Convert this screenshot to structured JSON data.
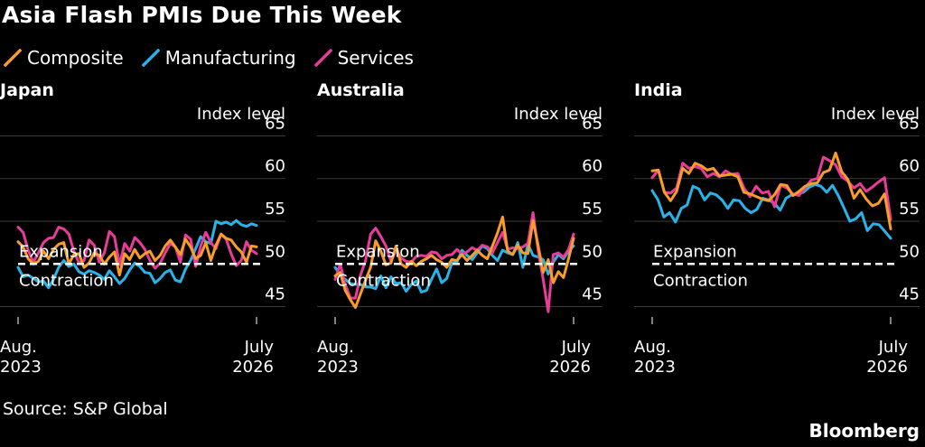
{
  "title": "Asia Flash PMIs Due This Week",
  "legend": [
    {
      "label": "Composite",
      "color": "#F99D2A",
      "icon": "check-mark-icon"
    },
    {
      "label": "Manufacturing",
      "color": "#28B4E9",
      "icon": "check-mark-icon"
    },
    {
      "label": "Services",
      "color": "#E93C9A",
      "icon": "check-mark-icon"
    }
  ],
  "source": "Source: S&P Global",
  "brand": "Bloomberg",
  "chart_data": [
    {
      "type": "line",
      "title": "Japan",
      "ylabel": "Index level",
      "ylim": [
        44,
        66
      ],
      "yticks": [
        45,
        50,
        55,
        60,
        65
      ],
      "x_start_label": [
        "Aug.",
        "2023"
      ],
      "x_end_label": [
        "July",
        "2026"
      ],
      "annotations": {
        "reference_line": 50,
        "above": "Expansion",
        "below": "Contraction"
      },
      "grid": true,
      "series": [
        {
          "name": "Composite",
          "color": "#F99D2A",
          "values": [
            52.6,
            52.0,
            50.6,
            50.0,
            50.3,
            51.5,
            50.6,
            51.7,
            52.3,
            52.5,
            50.0,
            51.1,
            51.2,
            49.6,
            50.1,
            51.3,
            51.0,
            50.0,
            50.8,
            51.4,
            48.7,
            51.2,
            50.5,
            51.7,
            50.7,
            51.2,
            51.5,
            50.4,
            51.0,
            52.1,
            52.8,
            52.0,
            51.1,
            52.9,
            52.0,
            50.6,
            51.0,
            52.5,
            50.4,
            52.2,
            53.5,
            53.0,
            52.8,
            52.0,
            51.4,
            50.2,
            52.1,
            52.0
          ]
        },
        {
          "name": "Manufacturing",
          "color": "#28B4E9",
          "values": [
            49.6,
            48.5,
            48.7,
            48.3,
            47.9,
            48.0,
            47.2,
            48.2,
            49.6,
            50.4,
            49.7,
            50.0,
            49.1,
            48.8,
            49.2,
            49.0,
            48.7,
            48.2,
            49.2,
            48.5,
            47.7,
            48.3,
            49.3,
            50.1,
            49.7,
            49.0,
            48.9,
            47.8,
            48.3,
            49.0,
            49.3,
            48.1,
            47.9,
            49.4,
            50.4,
            51.8,
            53.2,
            52.6,
            52.4,
            55.0,
            54.7,
            54.9,
            54.6,
            55.1,
            54.6,
            54.4,
            54.7,
            54.5
          ]
        },
        {
          "name": "Services",
          "color": "#E93C9A",
          "values": [
            54.3,
            53.7,
            51.6,
            50.2,
            51.3,
            52.5,
            53.0,
            53.1,
            54.3,
            54.1,
            53.5,
            51.5,
            50.1,
            50.4,
            52.8,
            52.2,
            50.2,
            51.3,
            53.8,
            53.2,
            49.9,
            52.4,
            51.5,
            53.1,
            52.5,
            51.7,
            50.4,
            49.5,
            50.1,
            51.3,
            52.4,
            52.0,
            50.2,
            53.4,
            52.9,
            49.7,
            52.1,
            53.7,
            52.5,
            51.8,
            53.5,
            52.9,
            51.2,
            49.8,
            50.4,
            52.6,
            51.6,
            51.2
          ]
        }
      ]
    },
    {
      "type": "line",
      "title": "Australia",
      "ylabel": "Index level",
      "ylim": [
        44,
        66
      ],
      "yticks": [
        45,
        50,
        55,
        60,
        65
      ],
      "x_start_label": [
        "Aug.",
        "2023"
      ],
      "x_end_label": [
        "July",
        "2026"
      ],
      "annotations": {
        "reference_line": 50,
        "above": "Expansion",
        "below": "Contraction"
      },
      "grid": true,
      "series": [
        {
          "name": "Composite",
          "color": "#F99D2A",
          "values": [
            48.6,
            49.0,
            46.9,
            45.8,
            44.9,
            46.5,
            48.1,
            49.6,
            52.7,
            51.5,
            49.9,
            50.1,
            52.1,
            50.0,
            49.6,
            50.3,
            49.8,
            50.3,
            50.6,
            51.0,
            50.5,
            50.2,
            49.6,
            50.5,
            50.4,
            51.1,
            50.4,
            51.0,
            51.6,
            51.0,
            50.6,
            52.1,
            53.6,
            55.5,
            51.5,
            51.1,
            52.2,
            51.3,
            51.2,
            55.1,
            52.2,
            49.0,
            50.5,
            47.8,
            49.1,
            48.4,
            50.6,
            53.0
          ]
        },
        {
          "name": "Manufacturing",
          "color": "#28B4E9",
          "values": [
            49.6,
            48.7,
            48.2,
            47.7,
            47.6,
            47.6,
            47.3,
            47.3,
            47.1,
            48.6,
            47.2,
            48.5,
            47.7,
            47.8,
            46.8,
            47.6,
            48.0,
            46.7,
            46.9,
            48.2,
            49.4,
            47.8,
            48.3,
            50.1,
            50.2,
            51.6,
            51.0,
            50.5,
            51.3,
            52.1,
            51.8,
            51.0,
            50.4,
            51.6,
            51.3,
            51.1,
            52.5,
            49.6,
            52.3,
            51.0,
            50.8,
            50.5,
            48.8,
            50.2,
            51.1,
            50.6,
            51.5,
            52.1
          ]
        },
        {
          "name": "Services",
          "color": "#E93C9A",
          "values": [
            48.2,
            50.0,
            47.6,
            46.0,
            46.0,
            48.7,
            50.4,
            53.5,
            54.2,
            53.2,
            52.1,
            50.3,
            51.6,
            50.7,
            50.3,
            50.2,
            50.9,
            51.0,
            50.9,
            51.4,
            51.3,
            50.6,
            51.0,
            51.1,
            51.7,
            51.2,
            51.4,
            51.9,
            51.6,
            52.2,
            52.0,
            51.3,
            52.5,
            53.7,
            51.7,
            51.9,
            51.8,
            52.0,
            52.4,
            56.0,
            51.6,
            48.2,
            44.4,
            51.1,
            51.3,
            50.8,
            51.7,
            53.5
          ]
        }
      ]
    },
    {
      "type": "line",
      "title": "India",
      "ylabel": "Index level",
      "ylim": [
        44,
        66
      ],
      "yticks": [
        45,
        50,
        55,
        60,
        65
      ],
      "x_start_label": [
        "Aug.",
        "2023"
      ],
      "x_end_label": [
        "July",
        "2026"
      ],
      "annotations": {
        "reference_line": 50,
        "above": "Expansion",
        "below": "Contraction"
      },
      "grid": true,
      "series": [
        {
          "name": "Composite",
          "color": "#F99D2A",
          "values": [
            60.9,
            61.0,
            58.4,
            57.4,
            58.5,
            61.2,
            60.6,
            61.8,
            61.5,
            61.0,
            61.2,
            60.3,
            60.4,
            60.5,
            60.2,
            58.4,
            58.2,
            57.9,
            57.6,
            57.4,
            58.1,
            59.3,
            59.2,
            58.0,
            58.5,
            59.1,
            59.4,
            59.5,
            60.7,
            61.0,
            63.0,
            60.8,
            59.9,
            57.7,
            58.7,
            57.6,
            56.8,
            57.1,
            58.2,
            54.1
          ]
        },
        {
          "name": "Manufacturing",
          "color": "#28B4E9",
          "values": [
            58.6,
            57.5,
            55.5,
            56.0,
            54.9,
            56.5,
            56.9,
            59.1,
            58.8,
            57.5,
            58.3,
            58.1,
            57.5,
            56.5,
            57.5,
            57.4,
            56.5,
            56.0,
            56.4,
            57.7,
            57.5,
            57.1,
            56.3,
            57.7,
            58.1,
            58.2,
            58.4,
            59.0,
            59.3,
            59.1,
            58.4,
            59.2,
            58.0,
            56.5,
            55.0,
            55.3,
            56.0,
            53.9,
            54.7,
            54.6,
            53.8,
            53.0
          ]
        },
        {
          "name": "Services",
          "color": "#E93C9A",
          "values": [
            60.1,
            61.0,
            58.4,
            58.3,
            58.9,
            61.8,
            61.2,
            61.4,
            61.2,
            60.2,
            60.6,
            60.2,
            60.9,
            60.5,
            60.6,
            58.9,
            57.9,
            59.1,
            58.3,
            58.5,
            56.7,
            59.2,
            58.9,
            58.2,
            58.0,
            58.9,
            59.8,
            60.0,
            62.5,
            62.1,
            61.6,
            60.2,
            59.7,
            58.9,
            59.4,
            58.5,
            59.0,
            59.6,
            60.1,
            55.2
          ]
        }
      ]
    }
  ]
}
